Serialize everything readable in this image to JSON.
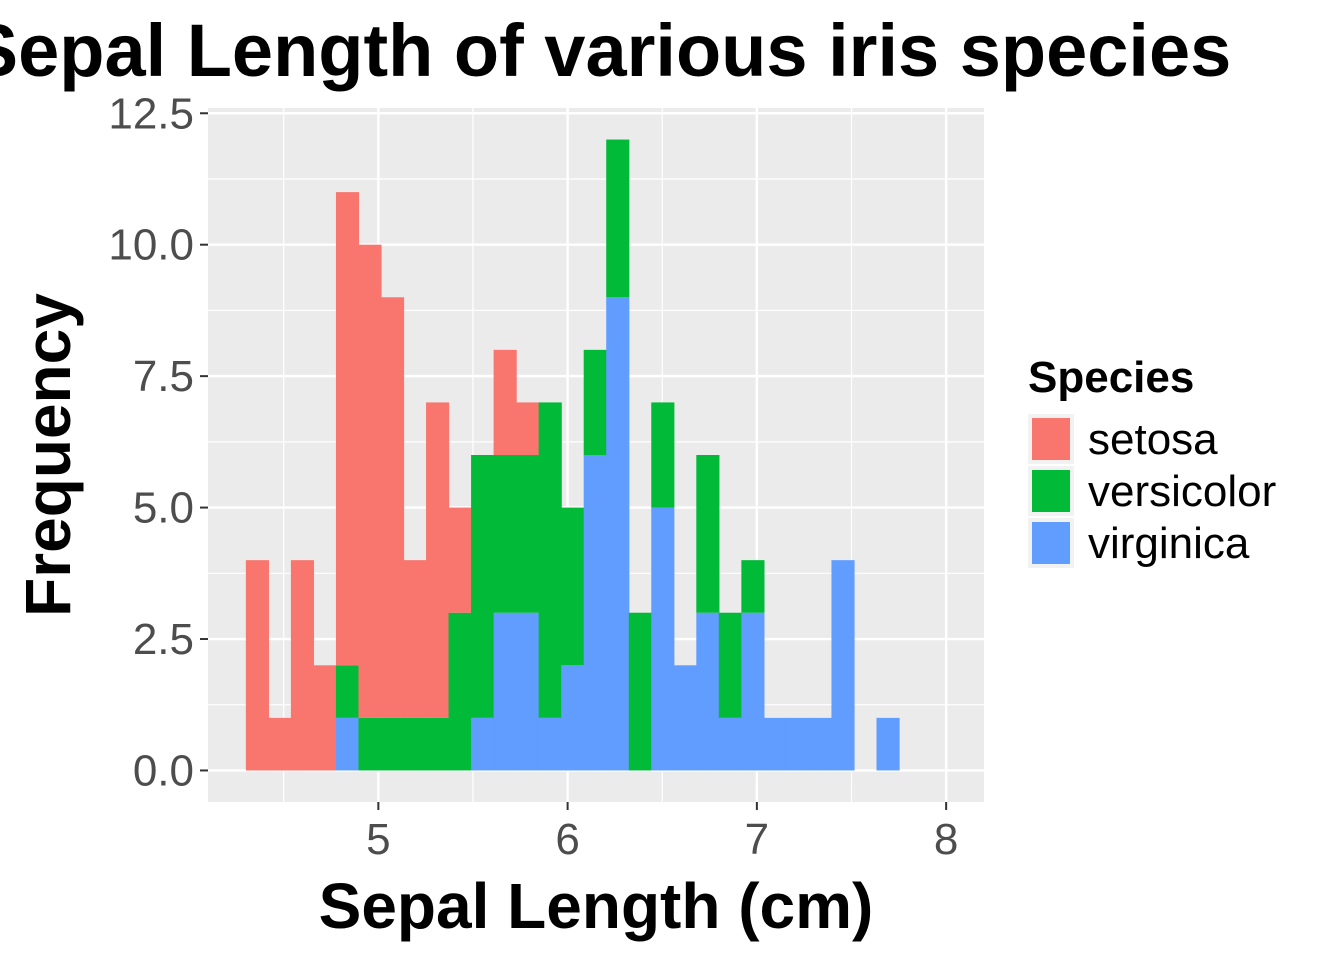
{
  "chart_data": {
    "type": "histogram",
    "stacked": true,
    "title": "Sepal Length of various iris species",
    "xlabel": "Sepal Length (cm)",
    "ylabel": "Frequency",
    "xlim": [
      4.1,
      8.2
    ],
    "ylim": [
      -0.6,
      12.6
    ],
    "bin_edges": [
      4.3,
      4.419,
      4.538,
      4.657,
      4.776,
      4.895,
      5.014,
      5.133,
      5.252,
      5.371,
      5.49,
      5.609,
      5.728,
      5.847,
      5.966,
      6.085,
      6.204,
      6.323,
      6.442,
      6.561,
      6.68,
      6.799,
      6.918,
      7.037,
      7.156,
      7.275,
      7.394,
      7.513,
      7.632,
      7.751,
      7.87,
      7.989
    ],
    "x_ticks": [
      5,
      6,
      7,
      8
    ],
    "x_tick_labels": [
      "5",
      "6",
      "7",
      "8"
    ],
    "y_ticks": [
      0,
      2.5,
      5,
      7.5,
      10,
      12.5
    ],
    "y_tick_labels": [
      "0.0",
      "2.5",
      "5.0",
      "7.5",
      "10.0",
      "12.5"
    ],
    "grid": true,
    "legend_placement": "right",
    "legend_title": "Species",
    "series": [
      {
        "name": "setosa",
        "color": "#F8766D",
        "values": [
          4,
          1,
          4,
          2,
          9,
          9,
          8,
          3,
          6,
          2,
          0,
          2,
          1,
          0,
          0,
          0,
          0,
          0,
          0,
          0,
          0,
          0,
          0,
          0,
          0,
          0,
          0,
          0,
          0,
          0,
          0
        ]
      },
      {
        "name": "versicolor",
        "color": "#00BA38",
        "values": [
          0,
          0,
          0,
          0,
          1,
          1,
          1,
          1,
          1,
          3,
          5,
          3,
          3,
          6,
          3,
          2,
          3,
          3,
          2,
          0,
          3,
          2,
          1,
          0,
          0,
          0,
          0,
          0,
          0,
          0,
          0
        ]
      },
      {
        "name": "virginica",
        "color": "#619CFF",
        "values": [
          0,
          0,
          0,
          0,
          1,
          0,
          0,
          0,
          0,
          0,
          1,
          3,
          3,
          1,
          2,
          6,
          9,
          0,
          5,
          2,
          3,
          1,
          3,
          1,
          1,
          1,
          4,
          0,
          1,
          0,
          0
        ]
      }
    ]
  }
}
